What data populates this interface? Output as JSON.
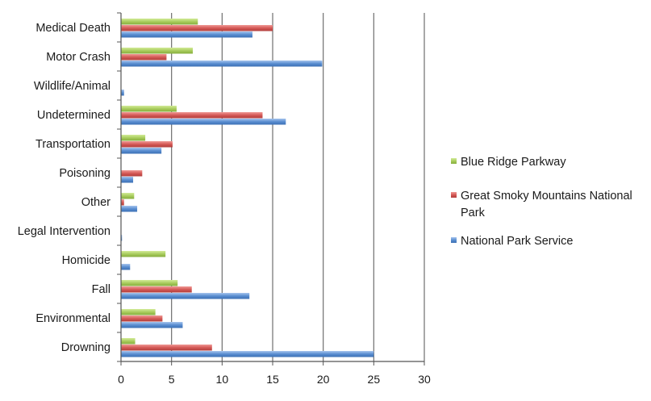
{
  "chart_data": {
    "type": "bar",
    "orientation": "horizontal",
    "categories": [
      "Medical Death",
      "Motor Crash",
      "Wildlife/Animal",
      "Undetermined",
      "Transportation",
      "Poisoning",
      "Other",
      "Legal Intervention",
      "Homicide",
      "Fall",
      "Environmental",
      "Drowning"
    ],
    "series": [
      {
        "name": "Blue Ridge Parkway",
        "legend_lines": [
          "Blue Ridge Parkway"
        ],
        "color": "#a9cd5e",
        "values": [
          7.6,
          7.1,
          0,
          5.5,
          2.4,
          0,
          1.3,
          0,
          4.4,
          5.6,
          3.4,
          1.4
        ]
      },
      {
        "name": "Great Smoky Mountains National Park",
        "legend_lines": [
          "Great Smoky Mountains National",
          "Park"
        ],
        "color": "#d55a57",
        "values": [
          15.0,
          4.5,
          0,
          14.0,
          5.1,
          2.1,
          0.3,
          0,
          0,
          7.0,
          4.1,
          9.0
        ]
      },
      {
        "name": "National Park Service",
        "legend_lines": [
          "National Park Service"
        ],
        "color": "#5b8fd1",
        "values": [
          13.0,
          19.9,
          0.3,
          16.3,
          4.0,
          1.2,
          1.6,
          0.1,
          0.9,
          12.7,
          6.1,
          25.0
        ]
      }
    ],
    "xlim": [
      0,
      30
    ],
    "xticks": [
      0,
      5,
      10,
      15,
      20,
      25,
      30
    ],
    "title": "",
    "xlabel": "",
    "ylabel": "",
    "grid": "vertical",
    "legend_position": "right"
  }
}
